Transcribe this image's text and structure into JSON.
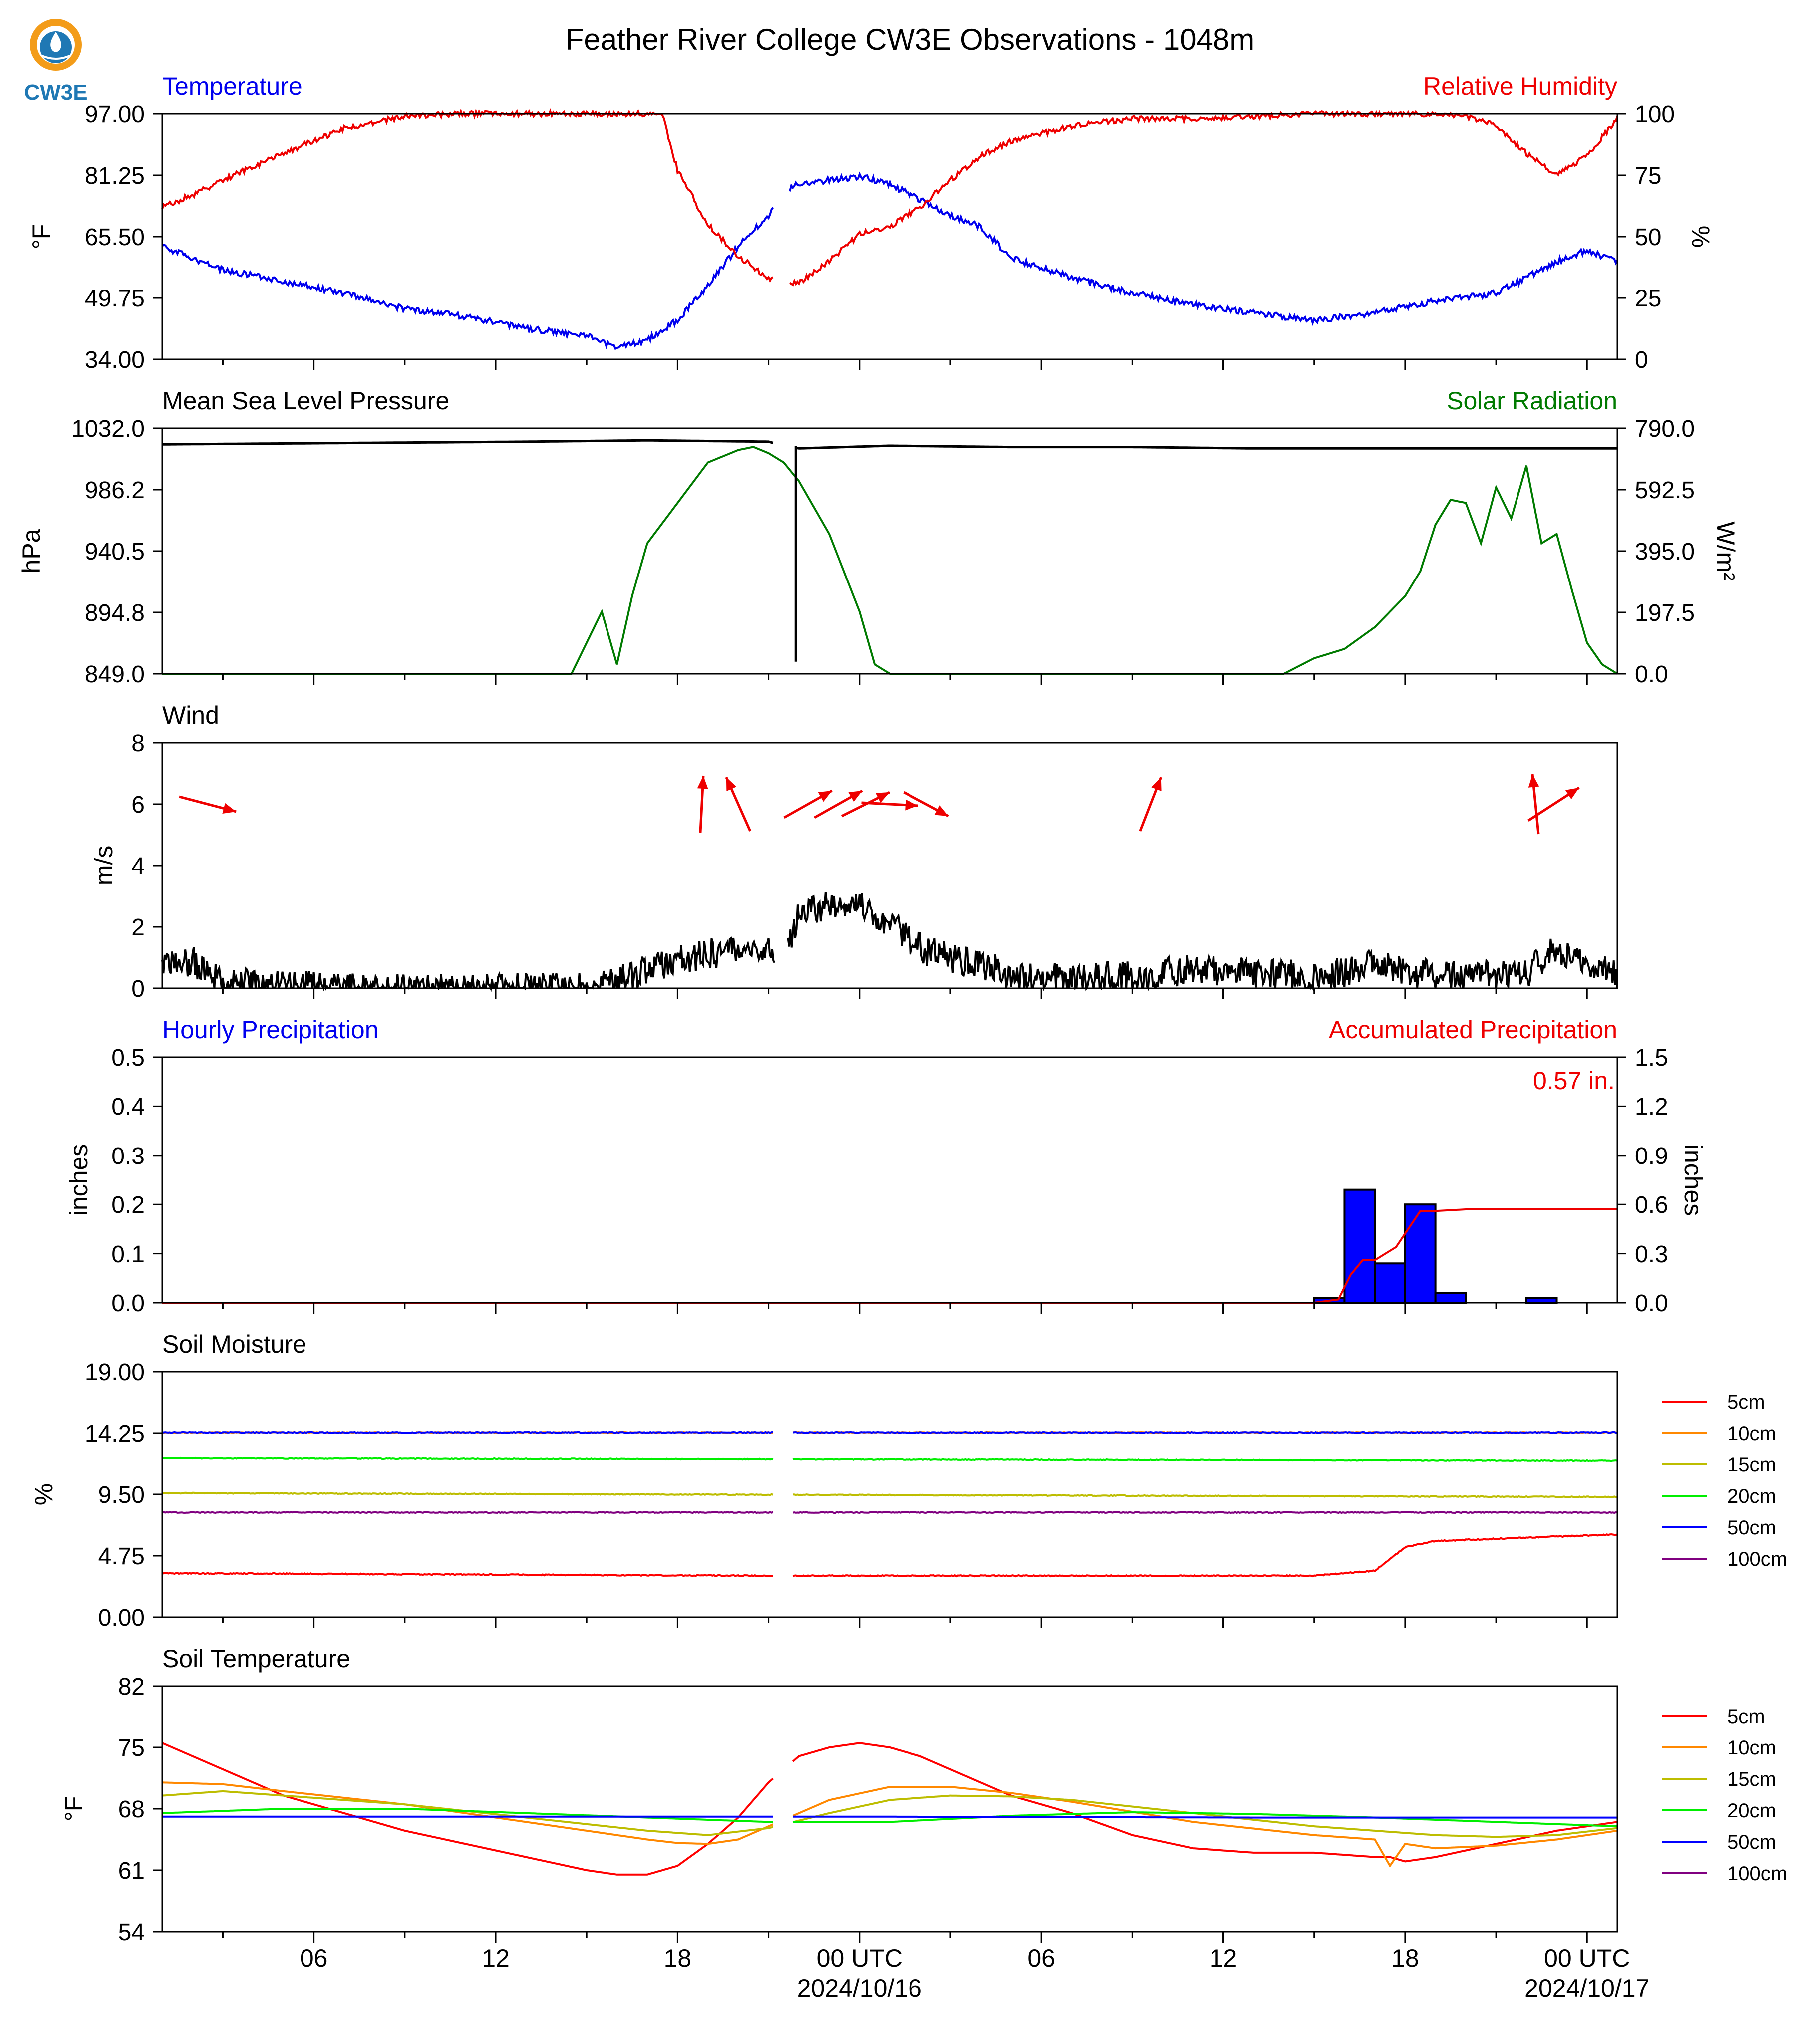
{
  "title": "Feather River College CW3E Observations - 1048m",
  "logo_text": "CW3E",
  "x_axis": {
    "start_hour": 0,
    "end_hour": 48,
    "minor_step_hours": 3,
    "tick_labels": [
      {
        "hour": 5,
        "text": "06"
      },
      {
        "hour": 11,
        "text": "12"
      },
      {
        "hour": 17,
        "text": "18"
      },
      {
        "hour": 23,
        "text": "00 UTC",
        "date": "2024/10/16"
      },
      {
        "hour": 29,
        "text": "06"
      },
      {
        "hour": 35,
        "text": "12"
      },
      {
        "hour": 41,
        "text": "18"
      },
      {
        "hour": 47,
        "text": "00 UTC",
        "date": "2024/10/17"
      }
    ]
  },
  "panels": {
    "temp_rh": {
      "left_title": "Temperature",
      "right_title": "Relative Humidity",
      "left_ylabel": "°F",
      "right_ylabel": "%",
      "left_ticks": [
        "34.00",
        "49.75",
        "65.50",
        "81.25",
        "97.00"
      ],
      "right_ticks": [
        "0",
        "25",
        "50",
        "75",
        "100"
      ]
    },
    "pressure_solar": {
      "left_title": "Mean Sea Level Pressure",
      "right_title": "Solar Radiation",
      "left_ylabel": "hPa",
      "right_ylabel": "W/m²",
      "left_ticks": [
        "849.0",
        "894.8",
        "940.5",
        "986.2",
        "1032.0"
      ],
      "right_ticks": [
        "0.0",
        "197.5",
        "395.0",
        "592.5",
        "790.0"
      ]
    },
    "wind": {
      "left_title": "Wind",
      "left_ylabel": "m/s",
      "left_ticks": [
        "0",
        "2",
        "4",
        "6",
        "8"
      ]
    },
    "precip": {
      "left_title": "Hourly Precipitation",
      "right_title": "Accumulated Precipitation",
      "left_ylabel": "inches",
      "right_ylabel": "inches",
      "left_ticks": [
        "0.0",
        "0.1",
        "0.2",
        "0.3",
        "0.4",
        "0.5"
      ],
      "right_ticks": [
        "0.0",
        "0.3",
        "0.6",
        "0.9",
        "1.2",
        "1.5"
      ],
      "total_label": "0.57 in."
    },
    "soil_moisture": {
      "left_title": "Soil Moisture",
      "left_ylabel": "%",
      "left_ticks": [
        "0.00",
        "4.75",
        "9.50",
        "14.25",
        "19.00"
      ]
    },
    "soil_temp": {
      "left_title": "Soil Temperature",
      "left_ylabel": "°F",
      "left_ticks": [
        "54",
        "61",
        "68",
        "75",
        "82"
      ]
    }
  },
  "legend_entries": [
    "5cm",
    "10cm",
    "15cm",
    "20cm",
    "50cm",
    "100cm"
  ],
  "colors": {
    "temperature": "#0000ee",
    "humidity": "#ee0000",
    "pressure": "#000000",
    "solar": "#007a00",
    "wind_arrow": "#ee0000",
    "wind_speed": "#000000",
    "hourly_bar": "#0000ff",
    "accum": "#ee0000",
    "depths": [
      "#ff0000",
      "#ff8800",
      "#bdbd00",
      "#00ee00",
      "#0000ff",
      "#800080"
    ]
  },
  "chart_data": [
    {
      "type": "line",
      "title": "Temperature / Relative Humidity",
      "x_unit": "hours since 2024/10/15 01 UTC",
      "series": [
        {
          "name": "Temperature",
          "axis": "left",
          "ylim": [
            34,
            97
          ],
          "x": [
            0,
            1,
            2,
            4,
            6,
            8,
            10,
            12,
            14,
            15,
            16,
            17,
            18,
            19,
            20,
            20.5,
            21,
            22,
            23,
            24,
            25,
            26,
            27,
            28,
            30,
            32,
            34,
            36,
            38,
            40,
            42,
            44,
            45,
            46,
            47,
            48
          ],
          "y": [
            63,
            60,
            57,
            54,
            51,
            47,
            45,
            42,
            40,
            37,
            39,
            44,
            53,
            63,
            71,
            77,
            79,
            80,
            81,
            79,
            75,
            71,
            68,
            60,
            55,
            51,
            48,
            46,
            44,
            46,
            49,
            51,
            55,
            59,
            62,
            59
          ]
        },
        {
          "name": "Relative Humidity",
          "axis": "right",
          "ylim": [
            0,
            100
          ],
          "x": [
            0,
            1,
            2,
            4,
            6,
            8,
            10,
            12,
            14,
            15,
            16,
            16.5,
            17,
            18,
            19,
            20,
            20.5,
            21,
            22,
            23,
            24,
            25,
            26,
            27,
            28,
            30,
            32,
            34,
            36,
            38,
            40,
            42,
            43,
            44,
            45,
            45.5,
            46,
            47,
            48
          ],
          "y": [
            62,
            67,
            73,
            84,
            94,
            99,
            100,
            100,
            100,
            100,
            100,
            100,
            77,
            55,
            42,
            33,
            32,
            31,
            40,
            51,
            54,
            62,
            73,
            83,
            89,
            95,
            98,
            98,
            99,
            100,
            100,
            100,
            99,
            95,
            84,
            80,
            75,
            83,
            98
          ]
        }
      ]
    },
    {
      "type": "line",
      "title": "Mean Sea Level Pressure / Solar Radiation",
      "series": [
        {
          "name": "Mean Sea Level Pressure",
          "axis": "left",
          "ylim": [
            849,
            1032
          ],
          "x": [
            0,
            6,
            12,
            16,
            20,
            20.5,
            21,
            24,
            28,
            32,
            36,
            40,
            44,
            48
          ],
          "y": [
            1020,
            1021,
            1022,
            1023,
            1022,
            1019,
            1017,
            1019,
            1018,
            1018,
            1017,
            1017,
            1017,
            1017
          ]
        },
        {
          "name": "Solar Radiation",
          "axis": "right",
          "ylim": [
            0,
            790
          ],
          "x": [
            0,
            13.5,
            14,
            14.5,
            15,
            15.5,
            16,
            17,
            18,
            19,
            19.5,
            20,
            20.5,
            21,
            22,
            23,
            23.5,
            24,
            25,
            37,
            38,
            39,
            40,
            40.5,
            41,
            41.5,
            42,
            42.5,
            43,
            43.5,
            44,
            44.5,
            45,
            45.5,
            46,
            46.5,
            47,
            47.5,
            48
          ],
          "y": [
            0,
            0,
            100,
            200,
            30,
            250,
            420,
            550,
            680,
            720,
            730,
            710,
            680,
            620,
            450,
            200,
            30,
            0,
            0,
            0,
            50,
            80,
            150,
            200,
            250,
            330,
            480,
            560,
            550,
            420,
            600,
            500,
            670,
            420,
            450,
            270,
            100,
            30,
            0
          ]
        }
      ]
    },
    {
      "type": "line",
      "title": "Wind",
      "series": [
        {
          "name": "Wind Speed",
          "axis": "left",
          "ylim": [
            0,
            8
          ],
          "x": [
            0,
            1,
            2,
            4,
            6,
            8,
            10,
            12,
            14,
            15,
            16,
            17,
            18,
            19,
            20,
            20.5,
            21,
            22,
            23,
            24,
            25,
            26,
            27,
            28,
            30,
            32,
            34,
            36,
            38,
            39,
            40,
            41,
            42,
            43,
            44,
            45,
            46,
            47,
            48
          ],
          "y": [
            0.6,
            0.9,
            0.2,
            0.1,
            0,
            0,
            0,
            0,
            0,
            0.2,
            0.6,
            0.9,
            1.1,
            1.3,
            1.4,
            1.2,
            2.4,
            2.7,
            2.8,
            2.1,
            1.3,
            1.0,
            0.8,
            0.4,
            0.3,
            0.4,
            0.6,
            0.5,
            0.4,
            0.5,
            0.9,
            0.5,
            0.5,
            0.4,
            0.4,
            0.5,
            1.3,
            0.9,
            0.4
          ]
        }
      ],
      "arrows": [
        {
          "hour": 1.5,
          "u": 1.9,
          "v": -0.5
        },
        {
          "hour": 17.8,
          "u": 0.1,
          "v": 1.9
        },
        {
          "hour": 19.0,
          "u": -0.8,
          "v": 1.8
        },
        {
          "hour": 21.3,
          "u": 1.6,
          "v": 0.9
        },
        {
          "hour": 22.3,
          "u": 1.6,
          "v": 0.9
        },
        {
          "hour": 23.2,
          "u": 1.6,
          "v": 0.8
        },
        {
          "hour": 24.0,
          "u": 1.9,
          "v": -0.1
        },
        {
          "hour": 25.2,
          "u": 1.5,
          "v": -0.8
        },
        {
          "hour": 32.6,
          "u": 0.7,
          "v": 1.8
        },
        {
          "hour": 45.3,
          "u": -0.2,
          "v": 2.0
        },
        {
          "hour": 45.9,
          "u": 1.7,
          "v": 1.1
        }
      ]
    },
    {
      "type": "bar",
      "title": "Hourly Precipitation",
      "series": [
        {
          "name": "Hourly Precipitation",
          "axis": "left",
          "ylim": [
            0,
            0.5
          ],
          "x": [
            38,
            39,
            40,
            41,
            42,
            44,
            45
          ],
          "values": [
            0.01,
            0.23,
            0.08,
            0.2,
            0.02,
            0.0,
            0.01
          ]
        },
        {
          "name": "Accumulated Precipitation",
          "axis": "right",
          "ylim": [
            0,
            1.5
          ],
          "x": [
            0,
            38,
            38.8,
            39.2,
            39.6,
            40,
            40.7,
            41.5,
            42,
            43,
            48
          ],
          "y": [
            0,
            0,
            0.02,
            0.17,
            0.26,
            0.26,
            0.34,
            0.56,
            0.56,
            0.57,
            0.57
          ]
        }
      ]
    },
    {
      "type": "line",
      "title": "Soil Moisture",
      "ylim": [
        0,
        19
      ],
      "gap_hours": [
        20.2,
        20.8
      ],
      "series": [
        {
          "name": "5cm",
          "x": [
            0,
            20,
            38,
            40,
            41,
            42,
            48
          ],
          "y": [
            3.4,
            3.2,
            3.2,
            3.6,
            5.4,
            5.9,
            6.4
          ]
        },
        {
          "name": "10cm",
          "x": [
            0,
            48
          ],
          "y": [
            14.3,
            14.3
          ]
        },
        {
          "name": "15cm",
          "x": [
            0,
            48
          ],
          "y": [
            9.6,
            9.3
          ]
        },
        {
          "name": "20cm",
          "x": [
            0,
            48
          ],
          "y": [
            12.3,
            12.1
          ]
        },
        {
          "name": "50cm",
          "x": [
            0,
            48
          ],
          "y": [
            14.3,
            14.3
          ]
        },
        {
          "name": "100cm",
          "x": [
            0,
            48
          ],
          "y": [
            8.1,
            8.1
          ]
        }
      ]
    },
    {
      "type": "line",
      "title": "Soil Temperature",
      "ylim": [
        54,
        82
      ],
      "gap_hours": [
        20.2,
        20.8
      ],
      "series": [
        {
          "name": "5cm",
          "x": [
            0,
            1,
            2,
            4,
            6,
            8,
            10,
            12,
            14,
            15,
            16,
            17,
            18,
            19,
            20,
            21,
            22,
            23,
            24,
            25,
            26,
            28,
            30,
            32,
            34,
            36,
            38,
            40,
            40.5,
            41,
            42,
            44,
            46,
            48
          ],
          "y": [
            75.5,
            74,
            72.5,
            69.5,
            67.5,
            65.5,
            64,
            62.5,
            61,
            60.5,
            60.5,
            61.5,
            64,
            67,
            71,
            74,
            75,
            75.5,
            75,
            74,
            72.5,
            69.5,
            67.5,
            65,
            63.5,
            63,
            63,
            62.5,
            62.5,
            62,
            62.5,
            64,
            65.5,
            66.5
          ]
        },
        {
          "name": "10cm",
          "x": [
            0,
            2,
            4,
            8,
            12,
            16,
            17,
            18,
            19,
            20,
            21,
            22,
            24,
            26,
            28,
            30,
            34,
            38,
            40,
            40.5,
            41,
            42,
            44,
            46,
            48
          ],
          "y": [
            71,
            70.8,
            70,
            68.5,
            66.5,
            64.5,
            64.1,
            64,
            64.5,
            66,
            67.5,
            69,
            70.5,
            70.5,
            69.8,
            68.8,
            66.5,
            65,
            64.5,
            61.5,
            64,
            63.5,
            63.8,
            64.5,
            65.5
          ]
        },
        {
          "name": "15cm",
          "x": [
            0,
            2,
            4,
            8,
            12,
            16,
            18,
            20,
            22,
            24,
            26,
            28,
            30,
            34,
            38,
            42,
            44,
            46,
            48
          ],
          "y": [
            69.5,
            70,
            69.5,
            68.5,
            67,
            65.5,
            65,
            65.8,
            67.5,
            69,
            69.5,
            69.4,
            69,
            67.5,
            66,
            65,
            64.8,
            65,
            65.8
          ]
        },
        {
          "name": "20cm",
          "x": [
            0,
            4,
            8,
            12,
            16,
            20,
            24,
            28,
            32,
            36,
            40,
            44,
            48
          ],
          "y": [
            67.5,
            68,
            68,
            67.5,
            67,
            66.5,
            66.5,
            67.2,
            67.6,
            67.4,
            67,
            66.5,
            66
          ]
        },
        {
          "name": "50cm",
          "x": [
            0,
            12,
            24,
            36,
            48
          ],
          "y": [
            67.1,
            67.1,
            67.1,
            67.0,
            67.0
          ]
        },
        {
          "name": "100cm",
          "x": [],
          "y": []
        }
      ]
    }
  ]
}
